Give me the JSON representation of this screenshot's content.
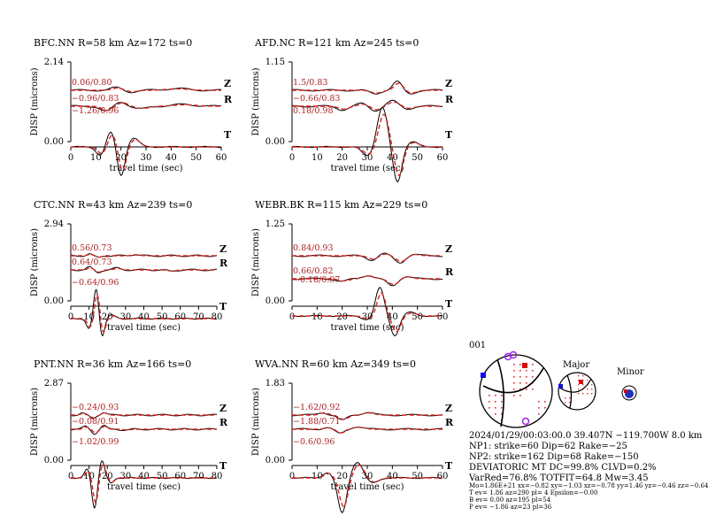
{
  "chart_data": [
    {
      "type": "line",
      "station": "BFC.NN",
      "title": "BFC.NN R=58 km Az=172 ts=0",
      "xlabel": "travel time (sec)",
      "ylabel": "DISP (microns)",
      "ymax_label": "2.14",
      "ymin_label": "0.00",
      "xlim": [
        0,
        60
      ],
      "xticks": [
        0,
        10,
        20,
        30,
        40,
        50,
        60
      ],
      "components": [
        {
          "name": "Z",
          "label": "0.06/0.80"
        },
        {
          "name": "R",
          "label": "−0.96/0.83"
        },
        {
          "name": "T",
          "label": "−1.26/0.96"
        }
      ]
    },
    {
      "type": "line",
      "station": "AFD.NC",
      "title": "AFD.NC R=121 km Az=245 ts=0",
      "xlabel": "travel time (sec)",
      "ylabel": "DISP (microns)",
      "ymax_label": "1.15",
      "ymin_label": "0.00",
      "xlim": [
        0,
        60
      ],
      "xticks": [
        0,
        10,
        20,
        30,
        40,
        50,
        60
      ],
      "components": [
        {
          "name": "Z",
          "label": "1.5/0.83"
        },
        {
          "name": "R",
          "label": "−0.66/0.83"
        },
        {
          "name": "T",
          "label": "0.18/0.98"
        }
      ]
    },
    {
      "type": "line",
      "station": "CTC.NN",
      "title": "CTC.NN R=43 km Az=239 ts=0",
      "xlabel": "travel time (sec)",
      "ylabel": "DISP (microns)",
      "ymax_label": "2.94",
      "ymin_label": "0.00",
      "xlim": [
        0,
        80
      ],
      "xticks": [
        0,
        10,
        20,
        30,
        40,
        50,
        60,
        70,
        80
      ],
      "components": [
        {
          "name": "Z",
          "label": "0.56/0.73"
        },
        {
          "name": "R",
          "label": "0.64/0.73"
        },
        {
          "name": "T",
          "label": "−0.64/0.96"
        }
      ]
    },
    {
      "type": "line",
      "station": "WEBR.BK",
      "title": "WEBR.BK R=115 km Az=229 ts=0",
      "xlabel": "travel time (sec)",
      "ylabel": "DISP (microns)",
      "ymax_label": "1.25",
      "ymin_label": "0.00",
      "xlim": [
        0,
        60
      ],
      "xticks": [
        0,
        10,
        20,
        30,
        40,
        50,
        60
      ],
      "components": [
        {
          "name": "Z",
          "label": "0.84/0.93"
        },
        {
          "name": "R",
          "label": "0.66/0.82"
        },
        {
          "name": "T",
          "label": "−0.18/0.97"
        }
      ]
    },
    {
      "type": "line",
      "station": "PNT.NN",
      "title": "PNT.NN R=36 km Az=166 ts=0",
      "xlabel": "travel time (sec)",
      "ylabel": "DISP (microns)",
      "ymax_label": "2.87",
      "ymin_label": "0.00",
      "xlim": [
        0,
        80
      ],
      "xticks": [
        0,
        10,
        20,
        30,
        40,
        50,
        60,
        70,
        80
      ],
      "components": [
        {
          "name": "Z",
          "label": "−0.24/0.93"
        },
        {
          "name": "R",
          "label": "−0.08/0.91"
        },
        {
          "name": "T",
          "label": "−1.02/0.99"
        }
      ]
    },
    {
      "type": "line",
      "station": "WVA.NN",
      "title": "WVA.NN R=60 km Az=349 ts=0",
      "xlabel": "travel time (sec)",
      "ylabel": "DISP (microns)",
      "ymax_label": "1.83",
      "ymin_label": "0.00",
      "xlim": [
        0,
        60
      ],
      "xticks": [
        0,
        10,
        20,
        30,
        40,
        50,
        60
      ],
      "components": [
        {
          "name": "Z",
          "label": "−1.62/0.92"
        },
        {
          "name": "R",
          "label": "−1.88/0.71"
        },
        {
          "name": "T",
          "label": "−0.6/0.96"
        }
      ]
    }
  ],
  "mechanism": {
    "event_id": "001",
    "major_label": "Major",
    "minor_label": "Minor",
    "lines": [
      "2024/01/29/00:03:00.0 39.407N −119.700W 8.0 km",
      "NP1: strike=60 Dip=62 Rake=−25",
      "NP2: strike=162 Dip=68 Rake=−150",
      "DEVIATORIC MT DC=99.8% CLVD=0.2%",
      "VarRed=76.8% TOTFIT=64.8 Mw=3.45"
    ],
    "small_lines": [
      "Mo=1.86E+21 xx=−0.82 xy=−1.03 xz=−0.78 yy=1.46 yz=−0.46 zz=−0.64",
      "T ev=  1.86 az=290 pl= 4 Epsilon=−0.00",
      "B ev=  0.00 az=195 pl=54",
      "P ev= −1.86 az=23 pl=36"
    ]
  },
  "colors": {
    "observed": "#000000",
    "synthetic": "#e0201f",
    "label": "#b02020",
    "compression": "#e03030",
    "station_blue": "#1010e0",
    "station_purple": "#a020f0"
  }
}
